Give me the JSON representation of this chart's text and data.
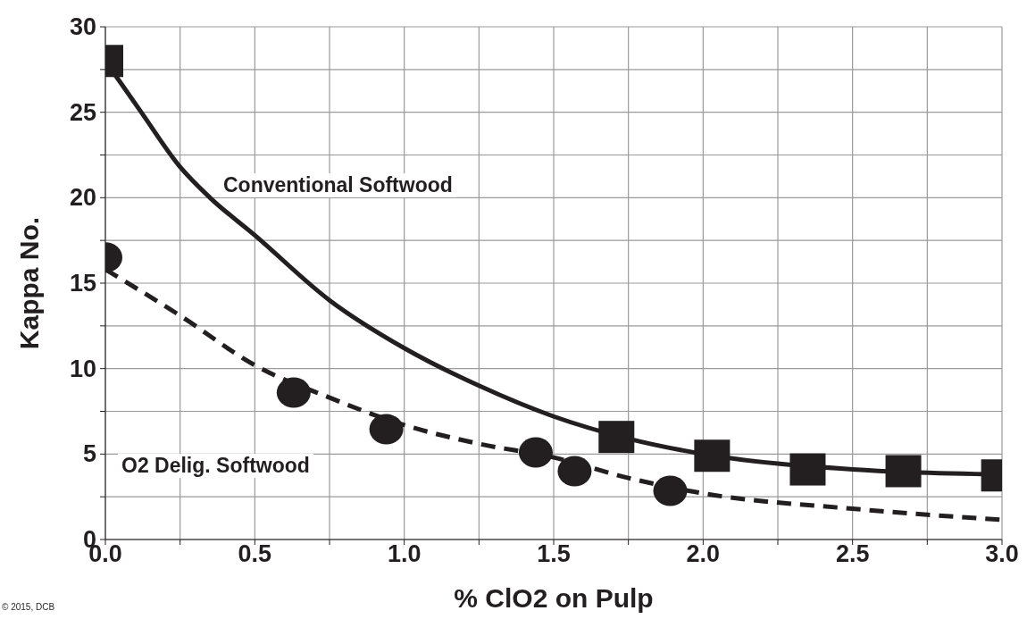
{
  "chart_data": {
    "type": "scatter",
    "xlabel": "% ClO2 on Pulp",
    "ylabel": "Kappa No.",
    "xlim": [
      0,
      3.0
    ],
    "ylim": [
      0,
      30
    ],
    "xticks": [
      {
        "value": 0,
        "label": "0.0"
      },
      {
        "value": 0.25,
        "label": null
      },
      {
        "value": 0.5,
        "label": "0.5"
      },
      {
        "value": 0.75,
        "label": null
      },
      {
        "value": 1,
        "label": "1.0"
      },
      {
        "value": 1.25,
        "label": null
      },
      {
        "value": 1.5,
        "label": "1.5"
      },
      {
        "value": 1.75,
        "label": null
      },
      {
        "value": 2,
        "label": "2.0"
      },
      {
        "value": 2.25,
        "label": null
      },
      {
        "value": 2.5,
        "label": "2.5"
      },
      {
        "value": 2.75,
        "label": null
      },
      {
        "value": 3,
        "label": "3.0"
      }
    ],
    "yticks": [
      0,
      {
        "value": 2.5,
        "label": null
      },
      5,
      {
        "value": 7.5,
        "label": null
      },
      10,
      {
        "value": 12.5,
        "label": null
      },
      15,
      {
        "value": 17.5,
        "label": null
      },
      20,
      {
        "value": 22.5,
        "label": null
      },
      25,
      {
        "value": 27.5,
        "label": null
      },
      30
    ],
    "grid": true,
    "series": [
      {
        "type": "line",
        "name": "Conventional Softwood",
        "color": "#231f20",
        "line_style": "solid",
        "marker": "none",
        "x": [
          0,
          0.12,
          0.25,
          0.35,
          0.5,
          0.75,
          1.0,
          1.25,
          1.5,
          1.75,
          2.0,
          2.5,
          3.0
        ],
        "values": [
          28,
          25,
          21.8,
          20,
          17.8,
          14,
          11.2,
          9,
          7.2,
          5.9,
          5,
          4.1,
          3.8
        ]
      },
      {
        "type": "line",
        "name": "O2 Delig. Softwood",
        "color": "#231f20",
        "line_style": "dashed",
        "marker": "none",
        "x": [
          0,
          0.25,
          0.5,
          0.75,
          1.0,
          1.25,
          1.5,
          1.75,
          2.0,
          2.5,
          3.0
        ],
        "values": [
          15.8,
          13.1,
          10.2,
          8.3,
          6.7,
          5.6,
          4.8,
          3.6,
          2.7,
          1.8,
          1.15
        ]
      },
      {
        "color": "#231f20",
        "marker": "square",
        "x": [
          0,
          1.71,
          2.03,
          2.35,
          2.67,
          2.99
        ],
        "values": [
          28,
          6,
          4.9,
          4.1,
          4,
          3.75
        ]
      },
      {
        "color": "#231f20",
        "marker": "circle",
        "x": [
          0,
          0.63,
          0.94,
          1.44,
          1.57,
          1.89
        ],
        "values": [
          16.5,
          8.6,
          6.45,
          5.1,
          4,
          2.85
        ]
      }
    ],
    "annotations": [
      "© 2015, DCB"
    ]
  }
}
